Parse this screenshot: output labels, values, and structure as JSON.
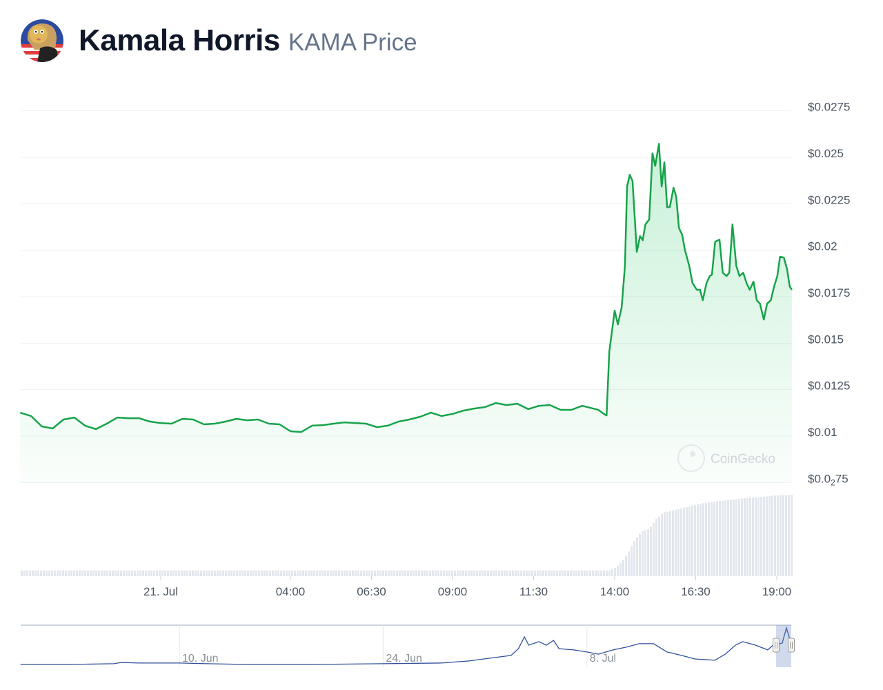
{
  "header": {
    "coin_name": "Kamala Horris",
    "subtitle": "KAMA Price",
    "logo_icon": "kamala-cartoon-avatar"
  },
  "watermark": "CoinGecko",
  "colors": {
    "line": "#17a34a",
    "fill": "#22c55e",
    "volume": "#e3e7ee",
    "navigator_line": "#2f4f9a",
    "grid": "#eef0f3"
  },
  "chart_data": {
    "type": "line",
    "title": "",
    "xlabel": "",
    "ylabel": "",
    "ylim": [
      0.0075,
      0.0275
    ],
    "y_ticks": [
      {
        "value": 0.0275,
        "label": "$0.0275"
      },
      {
        "value": 0.025,
        "label": "$0.025"
      },
      {
        "value": 0.0225,
        "label": "$0.0225"
      },
      {
        "value": 0.02,
        "label": "$0.02"
      },
      {
        "value": 0.0175,
        "label": "$0.0175"
      },
      {
        "value": 0.015,
        "label": "$0.015"
      },
      {
        "value": 0.0125,
        "label": "$0.0125"
      },
      {
        "value": 0.01,
        "label": "$0.01"
      },
      {
        "value": 0.0075,
        "label": "$0.0",
        "label_sub": "2",
        "label_rest": "75"
      }
    ],
    "x_ticks": [
      {
        "time": "07-21 00:00",
        "label": "21. Jul"
      },
      {
        "time": "07-21 04:00",
        "label": "04:00"
      },
      {
        "time": "07-21 06:30",
        "label": "06:30"
      },
      {
        "time": "07-21 09:00",
        "label": "09:00"
      },
      {
        "time": "07-21 11:30",
        "label": "11:30"
      },
      {
        "time": "07-21 14:00",
        "label": "14:00"
      },
      {
        "time": "07-21 16:30",
        "label": "16:30"
      },
      {
        "time": "07-21 19:00",
        "label": "19:00"
      }
    ],
    "grid": true,
    "series": [
      {
        "points": [
          [
            "07-20 19:40",
            0.01126
          ],
          [
            "07-20 20:00",
            0.01108
          ],
          [
            "07-20 20:20",
            0.01052
          ],
          [
            "07-20 20:40",
            0.01041
          ],
          [
            "07-20 21:00",
            0.01089
          ],
          [
            "07-20 21:20",
            0.011
          ],
          [
            "07-20 21:40",
            0.01056
          ],
          [
            "07-20 22:00",
            0.01037
          ],
          [
            "07-20 22:20",
            0.01067
          ],
          [
            "07-20 22:40",
            0.011
          ],
          [
            "07-20 23:00",
            0.01096
          ],
          [
            "07-20 23:20",
            0.01096
          ],
          [
            "07-20 23:40",
            0.01078
          ],
          [
            "07-21 00:00",
            0.0107
          ],
          [
            "07-21 00:20",
            0.01067
          ],
          [
            "07-21 00:40",
            0.01093
          ],
          [
            "07-21 01:00",
            0.01089
          ],
          [
            "07-21 01:20",
            0.01063
          ],
          [
            "07-21 01:40",
            0.01067
          ],
          [
            "07-21 02:00",
            0.01078
          ],
          [
            "07-21 02:20",
            0.01093
          ],
          [
            "07-21 02:40",
            0.01085
          ],
          [
            "07-21 03:00",
            0.01089
          ],
          [
            "07-21 03:20",
            0.01067
          ],
          [
            "07-21 03:40",
            0.01063
          ],
          [
            "07-21 04:00",
            0.01026
          ],
          [
            "07-21 04:20",
            0.01022
          ],
          [
            "07-21 04:40",
            0.01056
          ],
          [
            "07-21 05:00",
            0.01059
          ],
          [
            "07-21 05:20",
            0.01067
          ],
          [
            "07-21 05:40",
            0.01074
          ],
          [
            "07-21 06:00",
            0.0107
          ],
          [
            "07-21 06:20",
            0.01067
          ],
          [
            "07-21 06:40",
            0.01048
          ],
          [
            "07-21 07:00",
            0.01056
          ],
          [
            "07-21 07:20",
            0.01078
          ],
          [
            "07-21 07:40",
            0.01089
          ],
          [
            "07-21 08:00",
            0.01104
          ],
          [
            "07-21 08:20",
            0.01126
          ],
          [
            "07-21 08:40",
            0.01108
          ],
          [
            "07-21 09:00",
            0.01119
          ],
          [
            "07-21 09:20",
            0.01137
          ],
          [
            "07-21 09:40",
            0.01148
          ],
          [
            "07-21 10:00",
            0.01156
          ],
          [
            "07-21 10:20",
            0.01178
          ],
          [
            "07-21 10:40",
            0.01167
          ],
          [
            "07-21 11:00",
            0.01174
          ],
          [
            "07-21 11:20",
            0.01145
          ],
          [
            "07-21 11:40",
            0.01163
          ],
          [
            "07-21 12:00",
            0.01167
          ],
          [
            "07-21 12:20",
            0.01141
          ],
          [
            "07-21 12:40",
            0.01141
          ],
          [
            "07-21 13:00",
            0.01163
          ],
          [
            "07-21 13:20",
            0.01148
          ],
          [
            "07-21 13:30",
            0.01141
          ],
          [
            "07-21 13:40",
            0.01119
          ],
          [
            "07-21 13:45",
            0.01111
          ],
          [
            "07-21 13:50",
            0.01453
          ],
          [
            "07-21 14:00",
            0.01675
          ],
          [
            "07-21 14:06",
            0.01601
          ],
          [
            "07-21 14:13",
            0.01694
          ],
          [
            "07-21 14:19",
            0.01916
          ],
          [
            "07-21 14:23",
            0.02343
          ],
          [
            "07-21 14:28",
            0.02406
          ],
          [
            "07-21 14:33",
            0.02373
          ],
          [
            "07-21 14:41",
            0.01991
          ],
          [
            "07-21 14:47",
            0.02076
          ],
          [
            "07-21 14:52",
            0.02054
          ],
          [
            "07-21 14:57",
            0.02139
          ],
          [
            "07-21 15:04",
            0.02165
          ],
          [
            "07-21 15:10",
            0.02521
          ],
          [
            "07-21 15:15",
            0.02454
          ],
          [
            "07-21 15:22",
            0.02573
          ],
          [
            "07-21 15:27",
            0.02343
          ],
          [
            "07-21 15:32",
            0.02473
          ],
          [
            "07-21 15:37",
            0.02232
          ],
          [
            "07-21 15:42",
            0.02232
          ],
          [
            "07-21 15:49",
            0.02336
          ],
          [
            "07-21 15:54",
            0.02287
          ],
          [
            "07-21 15:59",
            0.0212
          ],
          [
            "07-21 16:05",
            0.02083
          ],
          [
            "07-21 16:10",
            0.02002
          ],
          [
            "07-21 16:18",
            0.01916
          ],
          [
            "07-21 16:24",
            0.01824
          ],
          [
            "07-21 16:32",
            0.01787
          ],
          [
            "07-21 16:38",
            0.01787
          ],
          [
            "07-21 16:43",
            0.01731
          ],
          [
            "07-21 16:50",
            0.01824
          ],
          [
            "07-21 16:56",
            0.01861
          ],
          [
            "07-21 17:00",
            0.01868
          ],
          [
            "07-21 17:06",
            0.02046
          ],
          [
            "07-21 17:14",
            0.02057
          ],
          [
            "07-21 17:20",
            0.01879
          ],
          [
            "07-21 17:27",
            0.01861
          ],
          [
            "07-21 17:32",
            0.01879
          ],
          [
            "07-21 17:38",
            0.02139
          ],
          [
            "07-21 17:45",
            0.01916
          ],
          [
            "07-21 17:51",
            0.01861
          ],
          [
            "07-21 17:58",
            0.01879
          ],
          [
            "07-21 18:04",
            0.01824
          ],
          [
            "07-21 18:10",
            0.01787
          ],
          [
            "07-21 18:17",
            0.01831
          ],
          [
            "07-21 18:23",
            0.01731
          ],
          [
            "07-21 18:29",
            0.01712
          ],
          [
            "07-21 18:36",
            0.01627
          ],
          [
            "07-21 18:42",
            0.01712
          ],
          [
            "07-21 18:49",
            0.01731
          ],
          [
            "07-21 18:55",
            0.01805
          ],
          [
            "07-21 19:01",
            0.01861
          ],
          [
            "07-21 19:06",
            0.01965
          ],
          [
            "07-21 19:13",
            0.01961
          ],
          [
            "07-21 19:19",
            0.01898
          ],
          [
            "07-21 19:24",
            0.01805
          ],
          [
            "07-21 19:28",
            0.01787
          ]
        ]
      }
    ],
    "volume_relative": [
      [
        "07-20 19:40",
        0.07
      ],
      [
        "07-21 13:50",
        0.07
      ],
      [
        "07-21 14:00",
        0.1
      ],
      [
        "07-21 14:13",
        0.17
      ],
      [
        "07-21 14:26",
        0.3
      ],
      [
        "07-21 14:38",
        0.45
      ],
      [
        "07-21 14:51",
        0.55
      ],
      [
        "07-21 15:04",
        0.58
      ],
      [
        "07-21 15:17",
        0.7
      ],
      [
        "07-21 15:30",
        0.78
      ],
      [
        "07-21 15:55",
        0.82
      ],
      [
        "07-21 16:21",
        0.86
      ],
      [
        "07-21 16:47",
        0.9
      ],
      [
        "07-21 17:12",
        0.92
      ],
      [
        "07-21 17:38",
        0.94
      ],
      [
        "07-21 18:04",
        0.96
      ],
      [
        "07-21 18:29",
        0.97
      ],
      [
        "07-21 18:55",
        0.99
      ],
      [
        "07-21 19:28",
        1.0
      ]
    ],
    "navigator": {
      "ticks": [
        {
          "date": "06-10 00",
          "label": "10. Jun"
        },
        {
          "date": "06-24 00",
          "label": "24. Jun"
        },
        {
          "date": "07-08 00",
          "label": "8. Jul"
        }
      ],
      "selected_range": [
        "07-20 19:40",
        "07-21 19:28"
      ],
      "points": [
        [
          "05-30 02",
          0.0005
        ],
        [
          "06-02 10",
          0.0005
        ],
        [
          "06-05 12",
          0.001
        ],
        [
          "06-06 00",
          0.0019
        ],
        [
          "06-07 05",
          0.0015
        ],
        [
          "06-10 00",
          0.0015
        ],
        [
          "06-11 22",
          0.001
        ],
        [
          "06-14 17",
          0.0005
        ],
        [
          "06-19 00",
          0.0005
        ],
        [
          "06-24 00",
          0.001
        ],
        [
          "06-28 00",
          0.0015
        ],
        [
          "06-29 22",
          0.0029
        ],
        [
          "06-30 22",
          0.0043
        ],
        [
          "07-02 19",
          0.0067
        ],
        [
          "07-03 07",
          0.0114
        ],
        [
          "07-03 17",
          0.0195
        ],
        [
          "07-04 00",
          0.0138
        ],
        [
          "07-04 17",
          0.0162
        ],
        [
          "07-05 05",
          0.0138
        ],
        [
          "07-05 17",
          0.0171
        ],
        [
          "07-06 02",
          0.0114
        ],
        [
          "07-07 02",
          0.0105
        ],
        [
          "07-08 00",
          0.0091
        ],
        [
          "07-08 19",
          0.0076
        ],
        [
          "07-09 19",
          0.0105
        ],
        [
          "07-10 17",
          0.0124
        ],
        [
          "07-11 14",
          0.0148
        ],
        [
          "07-12 14",
          0.0148
        ],
        [
          "07-13 12",
          0.0091
        ],
        [
          "07-14 12",
          0.0067
        ],
        [
          "07-15 10",
          0.0043
        ],
        [
          "07-16 19",
          0.0034
        ],
        [
          "07-17 12",
          0.0076
        ],
        [
          "07-18 05",
          0.0138
        ],
        [
          "07-18 17",
          0.0162
        ],
        [
          "07-19 14",
          0.0138
        ],
        [
          "07-20 10",
          0.0105
        ],
        [
          "07-20 19",
          0.0138
        ],
        [
          "07-21 10",
          0.0152
        ],
        [
          "07-21 17",
          0.0257
        ],
        [
          "07-21 22",
          0.0186
        ]
      ]
    }
  }
}
